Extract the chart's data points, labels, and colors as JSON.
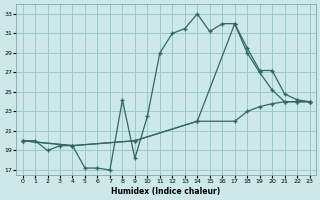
{
  "xlabel": "Humidex (Indice chaleur)",
  "bg_color": "#cce8e8",
  "grid_color": "#99cccc",
  "line_color": "#336666",
  "xlim": [
    -0.5,
    23.5
  ],
  "ylim": [
    16.5,
    34
  ],
  "yticks": [
    17,
    19,
    21,
    23,
    25,
    27,
    29,
    31,
    33
  ],
  "xticks": [
    0,
    1,
    2,
    3,
    4,
    5,
    6,
    7,
    8,
    9,
    10,
    11,
    12,
    13,
    14,
    15,
    16,
    17,
    18,
    19,
    20,
    21,
    22,
    23
  ],
  "line1_x": [
    0,
    1,
    2,
    3,
    4,
    5,
    6,
    7,
    8,
    9,
    10,
    11,
    12,
    13,
    14,
    15,
    16,
    17,
    18,
    19,
    20,
    21,
    22,
    23
  ],
  "line1_y": [
    20,
    20,
    19,
    19.5,
    19.5,
    17.2,
    17.2,
    17.0,
    24.2,
    18.2,
    22.5,
    29.0,
    31.0,
    31.5,
    33.0,
    31.2,
    32.0,
    32.0,
    29.0,
    27.0,
    25.2,
    24.0,
    24.0,
    24.0
  ],
  "line2_x": [
    0,
    4,
    9,
    14,
    17,
    18,
    19,
    20,
    21,
    22,
    23
  ],
  "line2_y": [
    20,
    19.5,
    20.0,
    22.0,
    32.0,
    29.5,
    27.2,
    27.2,
    24.8,
    24.2,
    24.0
  ],
  "line3_x": [
    0,
    4,
    9,
    14,
    17,
    18,
    19,
    20,
    21,
    22,
    23
  ],
  "line3_y": [
    20,
    19.5,
    20.0,
    22.0,
    22.0,
    23.0,
    23.5,
    23.8,
    24.0,
    24.0,
    24.0
  ]
}
